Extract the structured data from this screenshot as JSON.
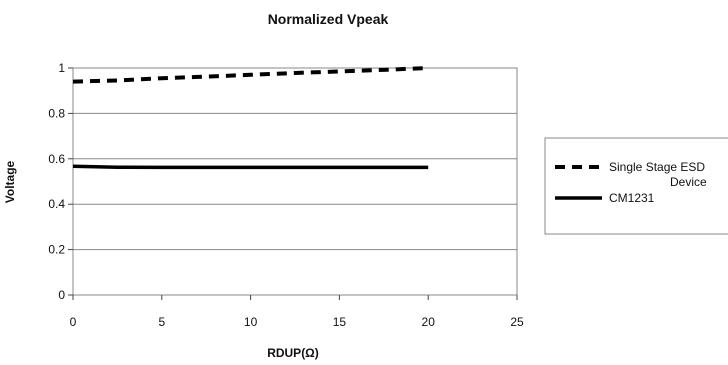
{
  "chart_data": {
    "type": "line",
    "title": "Normalized Vpeak",
    "xlabel": "RDUP(Ω)",
    "ylabel": "Voltage",
    "xlim": [
      0,
      25
    ],
    "ylim": [
      0,
      1
    ],
    "x_ticks": [
      "0",
      "5",
      "10",
      "15",
      "20",
      "25"
    ],
    "y_ticks": [
      "0",
      "0.2",
      "0.4",
      "0.6",
      "0.8",
      "1"
    ],
    "grid": "horizontal",
    "legend_position": "right",
    "series": [
      {
        "name_lines": [
          "Single Stage ESD",
          "Device"
        ],
        "style": "dashed",
        "color": "#000000",
        "x": [
          0,
          2.5,
          5,
          7.5,
          10,
          12.5,
          15,
          17.5,
          20
        ],
        "y": [
          0.94,
          0.945,
          0.955,
          0.962,
          0.97,
          0.978,
          0.985,
          0.992,
          1.0
        ]
      },
      {
        "name_lines": [
          "CM1231"
        ],
        "style": "solid",
        "color": "#000000",
        "x": [
          0,
          2.5,
          5,
          10,
          15,
          20
        ],
        "y": [
          0.567,
          0.563,
          0.562,
          0.562,
          0.562,
          0.562
        ]
      }
    ]
  }
}
